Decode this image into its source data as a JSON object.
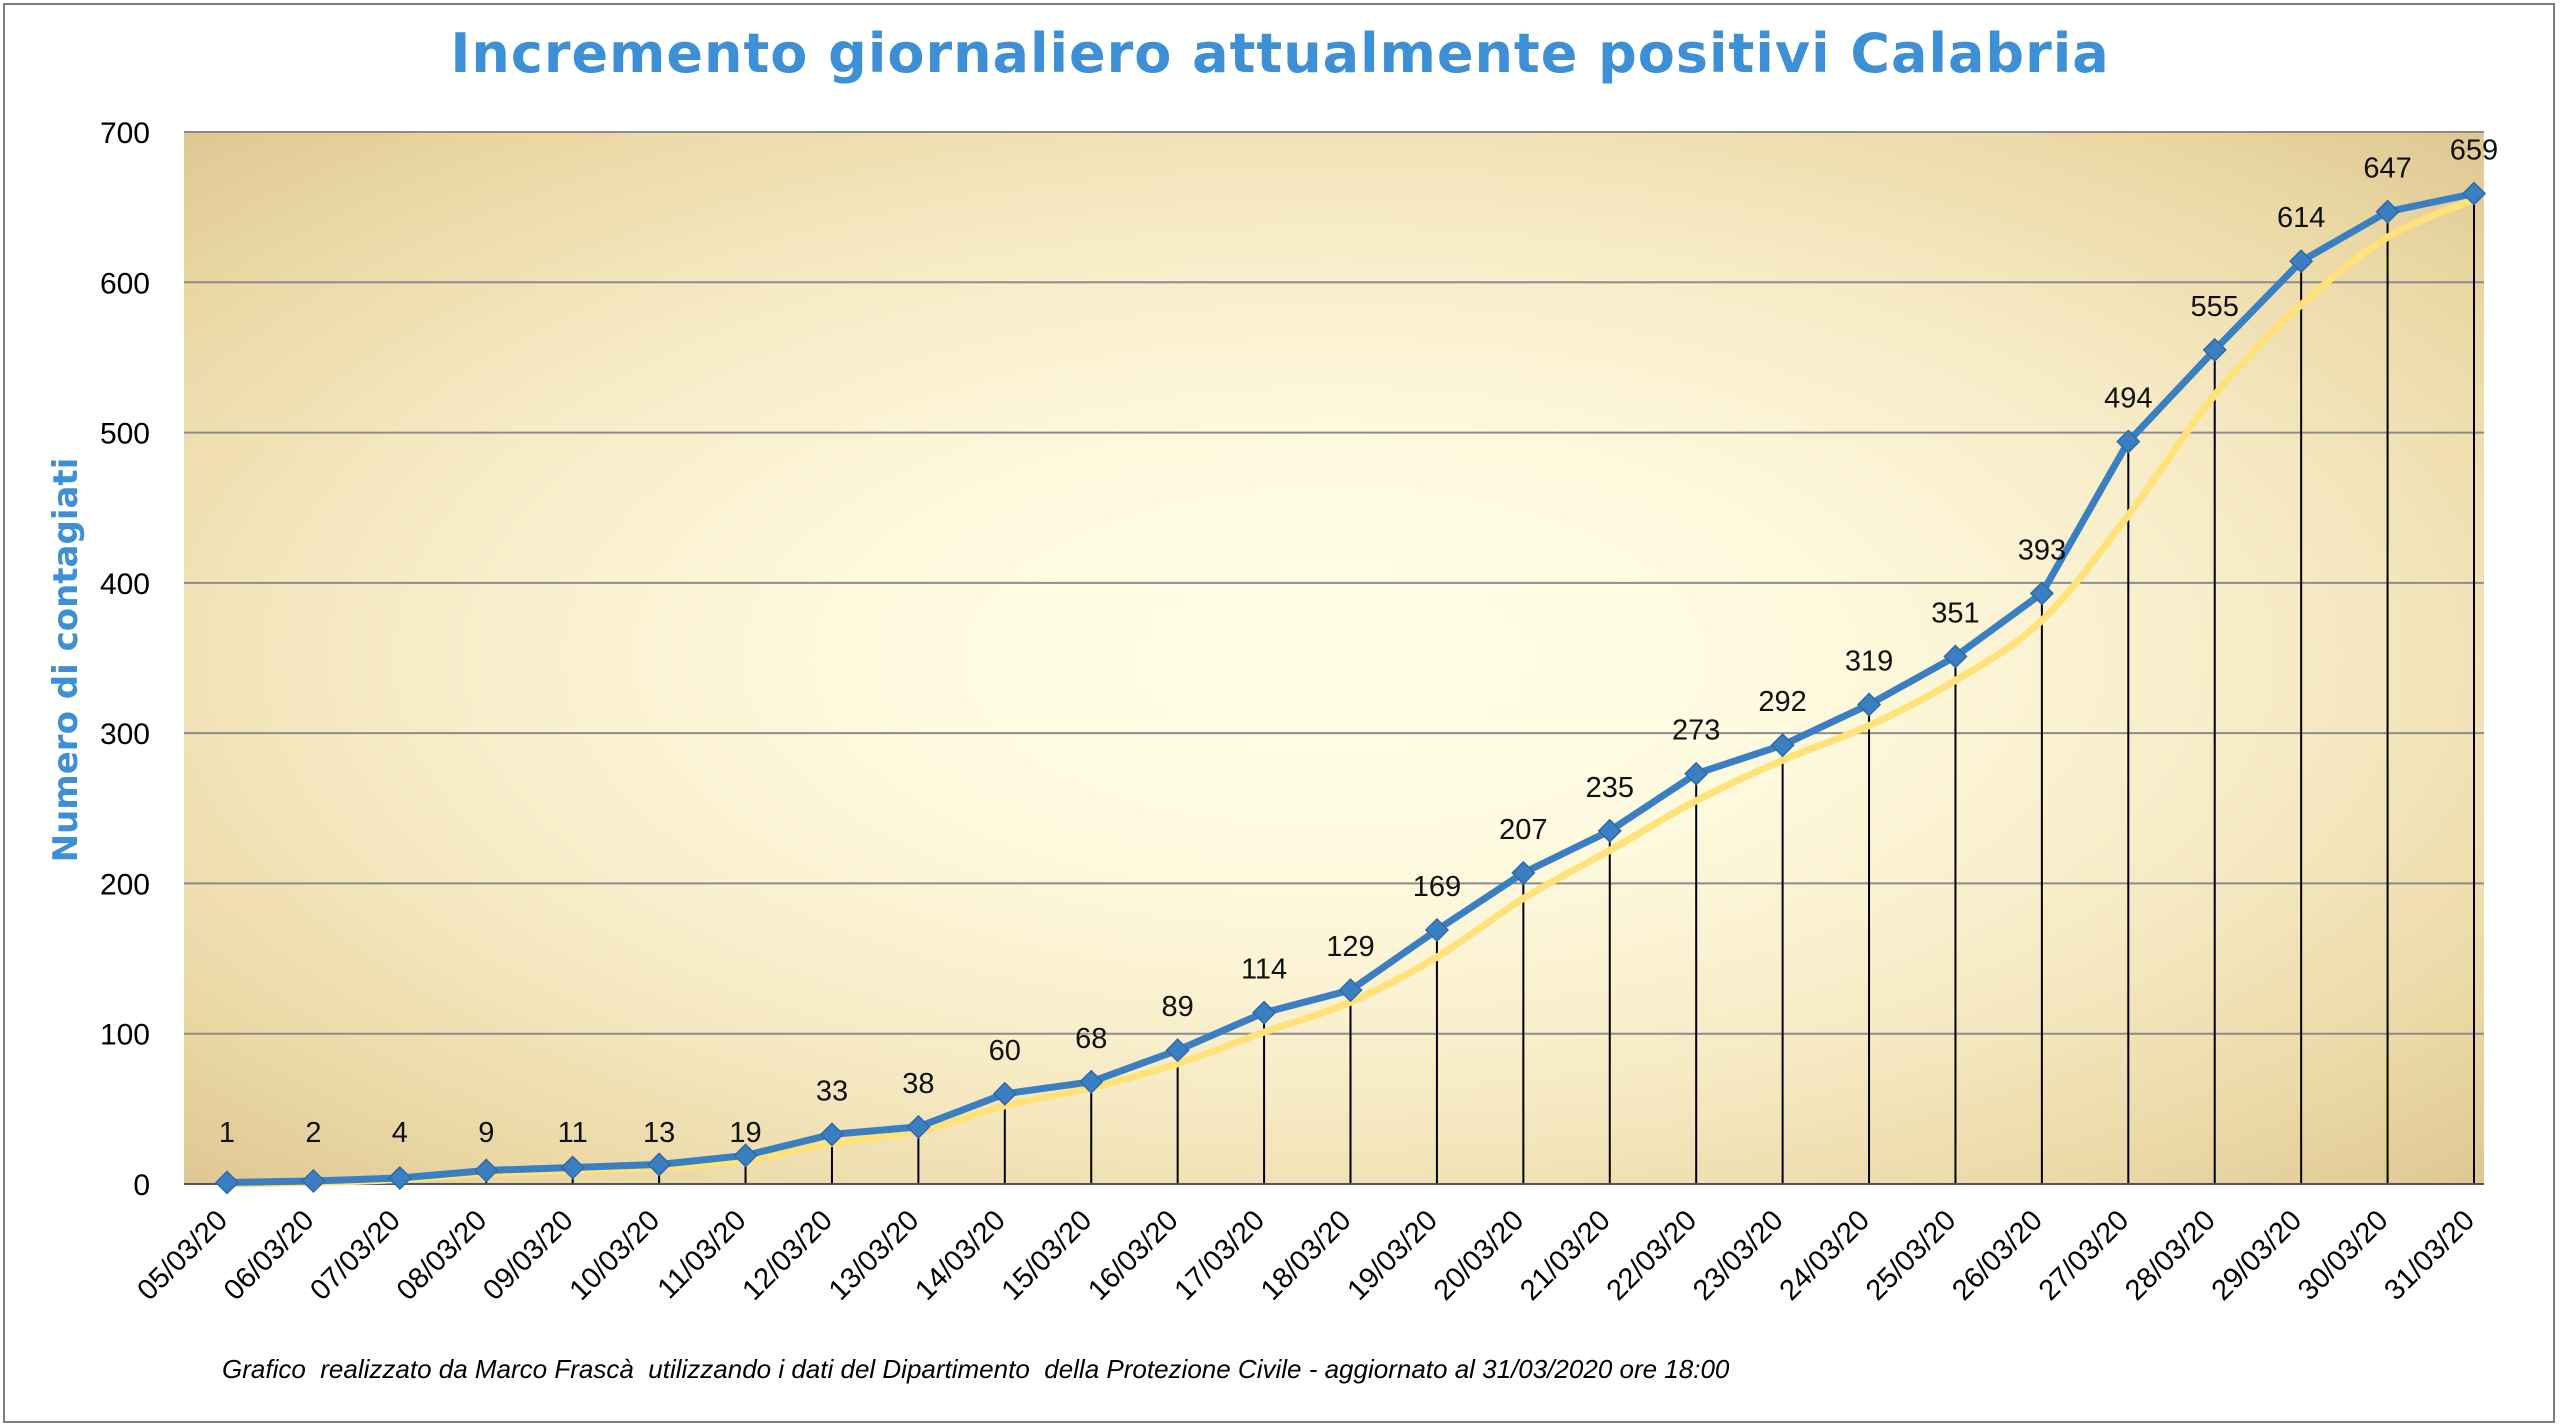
{
  "title": "Incremento giornaliero attualmente positivi Calabria",
  "credit": "Grafico  realizzato da Marco Frascà  utilizzando i dati del Dipartimento  della Protezione Civile - aggiornato al 31/03/2020 ore 18:00",
  "colors": {
    "title": "#3d8fd6",
    "series": "#3a7fc1",
    "trend": "#ffe27a",
    "grid": "#8c8c8c",
    "frame": "#7f7f7f"
  },
  "chart_data": {
    "type": "line",
    "title": "Incremento giornaliero attualmente positivi Calabria",
    "xlabel": "",
    "ylabel": "Numero di contagiati",
    "ylim": [
      0,
      700
    ],
    "yticks": [
      0,
      100,
      200,
      300,
      400,
      500,
      600,
      700
    ],
    "grid": true,
    "categories": [
      "05/03/20",
      "06/03/20",
      "07/03/20",
      "08/03/20",
      "09/03/20",
      "10/03/20",
      "11/03/20",
      "12/03/20",
      "13/03/20",
      "14/03/20",
      "15/03/20",
      "16/03/20",
      "17/03/20",
      "18/03/20",
      "19/03/20",
      "20/03/20",
      "21/03/20",
      "22/03/20",
      "23/03/20",
      "24/03/20",
      "25/03/20",
      "26/03/20",
      "27/03/20",
      "28/03/20",
      "29/03/20",
      "30/03/20",
      "31/03/20"
    ],
    "series": [
      {
        "values": [
          1,
          2,
          4,
          9,
          11,
          13,
          19,
          33,
          38,
          60,
          68,
          89,
          114,
          129,
          169,
          207,
          235,
          273,
          292,
          319,
          351,
          393,
          494,
          555,
          614,
          647,
          659
        ],
        "marker": "diamond",
        "data_labels": true
      },
      {
        "type": "trendline",
        "values": [
          0,
          1,
          3,
          7,
          9,
          11,
          16,
          27,
          35,
          52,
          64,
          80,
          101,
          121,
          151,
          190,
          222,
          255,
          282,
          305,
          335,
          375,
          445,
          525,
          585,
          630,
          655
        ]
      }
    ]
  }
}
